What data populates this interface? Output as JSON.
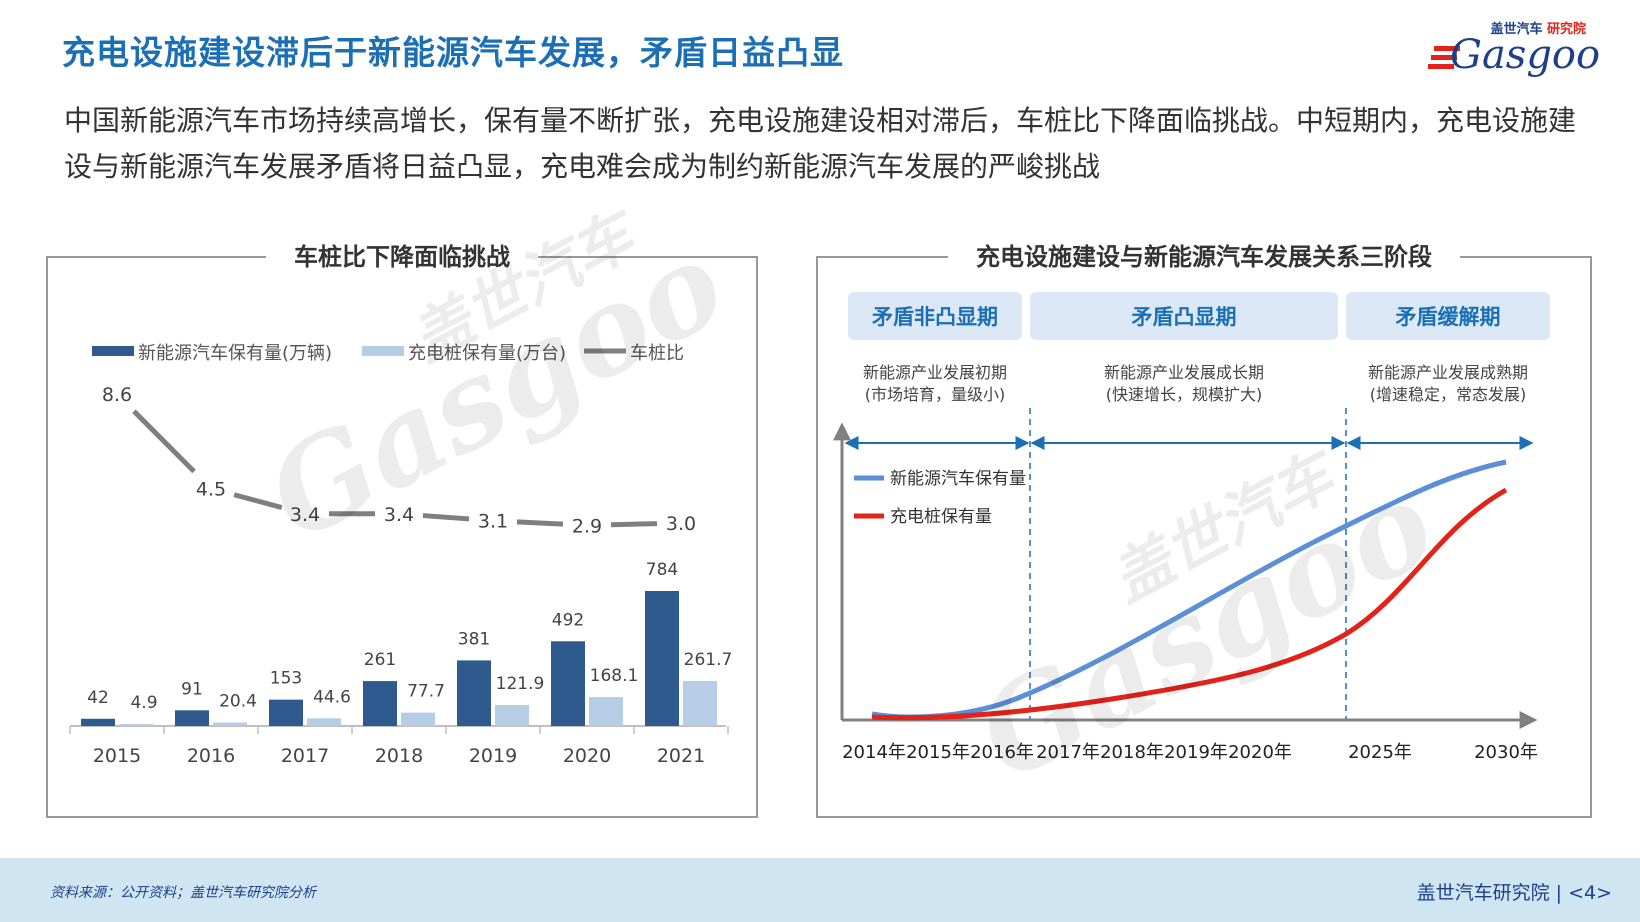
{
  "slide": {
    "title": "充电设施建设滞后于新能源汽车发展，矛盾日益凸显",
    "intro": "中国新能源汽车市场持续高增长，保有量不断扩张，充电设施建设相对滞后，车桩比下降面临挑战。中短期内，充电设施建设与新能源汽车发展矛盾将日益凸显，充电难会成为制约新能源汽车发展的严峻挑战"
  },
  "logo": {
    "cn_a": "盖世汽车",
    "cn_b": "研究院",
    "en": "Gasgoo"
  },
  "watermark": {
    "en": "Gasgoo",
    "cn": "盖世汽车"
  },
  "colors": {
    "title_blue": "#1b6fb5",
    "bar_dark": "#2f5a8e",
    "bar_light": "#b7cde6",
    "line_gray": "#7f7f7f",
    "curve_blue": "#5b8fd6",
    "curve_red": "#e2231a",
    "phase_box": "#dce8f5",
    "footer_bg": "#cfe6f2"
  },
  "chart_data": [
    {
      "type": "bar",
      "title": "车桩比下降面临挑战",
      "categories": [
        "2015",
        "2016",
        "2017",
        "2018",
        "2019",
        "2020",
        "2021"
      ],
      "series": [
        {
          "name": "新能源汽车保有量(万辆)",
          "values": [
            42,
            91,
            153,
            261,
            381,
            492,
            784
          ],
          "labels": [
            "42",
            "91",
            "153",
            "261",
            "381",
            "492",
            "784"
          ]
        },
        {
          "name": "充电桩保有量(万台)",
          "values": [
            4.9,
            20.4,
            44.6,
            77.7,
            121.9,
            168.1,
            261.7
          ],
          "labels": [
            "4.9",
            "20.4",
            "44.6",
            "77.7",
            "121.9",
            "168.1",
            "261.7"
          ]
        },
        {
          "name": "车桩比",
          "type": "line",
          "values": [
            8.6,
            4.5,
            3.4,
            3.4,
            3.1,
            2.9,
            3.0
          ],
          "labels": [
            "8.6",
            "4.5",
            "3.4",
            "3.4",
            "3.1",
            "2.9",
            "3.0"
          ]
        }
      ],
      "legend_position": "top"
    },
    {
      "type": "line",
      "title": "充电设施建设与新能源汽车发展关系三阶段",
      "x_labels": [
        "2014年",
        "2015年",
        "2016年",
        "2017年",
        "2018年",
        "2019年",
        "2020年",
        "2025年",
        "2030年"
      ],
      "series": [
        {
          "name": "新能源汽车保有量"
        },
        {
          "name": "充电桩保有量"
        }
      ],
      "phases": [
        {
          "name": "矛盾非凸显期",
          "desc1": "新能源产业发展初期",
          "desc2": "(市场培育，量级小)"
        },
        {
          "name": "矛盾凸显期",
          "desc1": "新能源产业发展成长期",
          "desc2": "(快速增长，规模扩大)"
        },
        {
          "name": "矛盾缓解期",
          "desc1": "新能源产业发展成熟期",
          "desc2": "(增速稳定，常态发展)"
        }
      ],
      "legend_position": "top-left"
    }
  ],
  "footer": {
    "source": "资料来源：公开资料；盖世汽车研究院分析",
    "org": "盖世汽车研究院",
    "page": "<4>"
  }
}
